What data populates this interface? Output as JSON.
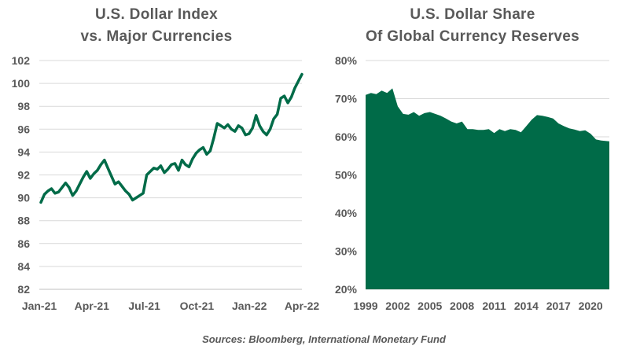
{
  "colors": {
    "accent": "#006b48",
    "text": "#595959",
    "grid": "#d9d9d9"
  },
  "source": "Sources: Bloomberg, International Monetary Fund",
  "chart_data": [
    {
      "type": "line",
      "title": [
        "U.S. Dollar Index",
        "vs. Major Currencies"
      ],
      "xlabel": "",
      "ylabel": "",
      "ylim": [
        82,
        102
      ],
      "yticks": [
        "82",
        "84",
        "86",
        "88",
        "90",
        "92",
        "94",
        "96",
        "98",
        "100",
        "102"
      ],
      "xticks": [
        "Jan-21",
        "Apr-21",
        "Jul-21",
        "Oct-21",
        "Jan-22",
        "Apr-22"
      ],
      "grid": true,
      "series": [
        {
          "values": [
            89.6,
            90.3,
            90.6,
            90.8,
            90.4,
            90.5,
            90.9,
            91.3,
            90.9,
            90.2,
            90.6,
            91.2,
            91.8,
            92.3,
            91.7,
            92.1,
            92.4,
            92.9,
            93.3,
            92.6,
            91.9,
            91.2,
            91.4,
            91.0,
            90.6,
            90.3,
            89.8,
            90.0,
            90.2,
            90.4,
            92.0,
            92.3,
            92.6,
            92.5,
            92.8,
            92.2,
            92.5,
            92.9,
            93.0,
            92.4,
            93.3,
            92.9,
            92.7,
            93.4,
            93.9,
            94.2,
            94.4,
            93.8,
            94.1,
            95.2,
            96.5,
            96.3,
            96.1,
            96.4,
            96.0,
            95.8,
            96.3,
            96.1,
            95.5,
            95.6,
            96.1,
            97.2,
            96.3,
            95.8,
            95.5,
            96.0,
            96.9,
            97.3,
            98.7,
            98.9,
            98.3,
            98.8,
            99.6,
            100.2,
            100.8
          ]
        }
      ]
    },
    {
      "type": "area",
      "title": [
        "U.S. Dollar Share",
        "Of Global Currency Reserves"
      ],
      "xlabel": "",
      "ylabel": "",
      "ylim": [
        20,
        80
      ],
      "yticks": [
        "20%",
        "30%",
        "40%",
        "50%",
        "60%",
        "70%",
        "80%"
      ],
      "xticks": [
        "1999",
        "2002",
        "2005",
        "2008",
        "2011",
        "2014",
        "2017",
        "2020"
      ],
      "grid": true,
      "x_range": [
        1999,
        2021.75
      ],
      "series": [
        {
          "x": [
            1999,
            1999.5,
            2000,
            2000.5,
            2001,
            2001.5,
            2002,
            2002.5,
            2003,
            2003.5,
            2004,
            2004.5,
            2005,
            2005.5,
            2006,
            2006.5,
            2007,
            2007.5,
            2008,
            2008.5,
            2009,
            2009.5,
            2010,
            2010.5,
            2011,
            2011.5,
            2012,
            2012.5,
            2013,
            2013.5,
            2014,
            2014.5,
            2015,
            2015.5,
            2016,
            2016.5,
            2017,
            2017.5,
            2018,
            2018.5,
            2019,
            2019.5,
            2020,
            2020.5,
            2021,
            2021.75
          ],
          "values": [
            71.0,
            71.5,
            71.2,
            72.1,
            71.5,
            72.7,
            68.0,
            66.0,
            65.8,
            66.5,
            65.5,
            66.2,
            66.5,
            66.0,
            65.5,
            64.8,
            64.0,
            63.5,
            64.0,
            62.0,
            62.0,
            61.8,
            61.8,
            62.0,
            61.0,
            62.0,
            61.5,
            62.0,
            61.8,
            61.2,
            62.8,
            64.5,
            65.7,
            65.5,
            65.2,
            64.8,
            63.5,
            62.8,
            62.2,
            61.9,
            61.5,
            61.7,
            60.8,
            59.3,
            59.0,
            58.8
          ]
        }
      ]
    }
  ]
}
